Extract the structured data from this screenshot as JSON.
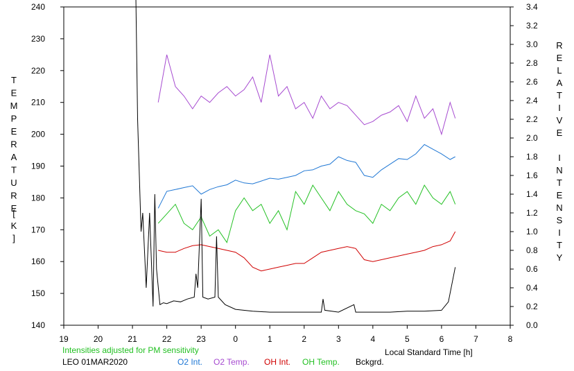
{
  "chart_data": {
    "type": "line",
    "title": "",
    "xlabel": "Local Standard Time [h]",
    "y_left_label": "TEMPERATURE [K]",
    "y_right_label": "RELATIVE INTENSITY",
    "x_range": [
      19,
      32
    ],
    "x_tick_labels": [
      "19",
      "20",
      "21",
      "22",
      "23",
      "0",
      "1",
      "2",
      "3",
      "4",
      "5",
      "6",
      "7",
      "8"
    ],
    "y_left_range": [
      140,
      240
    ],
    "y_left_ticks": [
      140,
      150,
      160,
      170,
      180,
      190,
      200,
      210,
      220,
      230,
      240
    ],
    "y_right_range": [
      0.0,
      3.4
    ],
    "y_right_ticks": [
      "0.0",
      "0.2",
      "0.4",
      "0.6",
      "0.8",
      "1.0",
      "1.2",
      "1.4",
      "1.6",
      "1.8",
      "2.0",
      "2.2",
      "2.4",
      "2.6",
      "2.8",
      "3.0",
      "3.2",
      "3.4"
    ],
    "grid": false,
    "legend_position": "bottom",
    "note": "Intensities adjusted for PM sensitivity",
    "station_date": "LEO 01MAR2020",
    "series": [
      {
        "name": "O2 Int.",
        "color": "#1f77d4",
        "axis": "right",
        "x": [
          21.75,
          22.0,
          22.25,
          22.5,
          22.75,
          23.0,
          23.25,
          23.5,
          23.75,
          24.0,
          24.25,
          24.5,
          24.75,
          25.0,
          25.25,
          25.5,
          25.75,
          26.0,
          26.25,
          26.5,
          26.75,
          27.0,
          27.25,
          27.5,
          27.75,
          28.0,
          28.25,
          28.5,
          28.75,
          29.0,
          29.25,
          29.5,
          29.75,
          30.0,
          30.25,
          30.4
        ],
        "values": [
          1.25,
          1.43,
          1.45,
          1.47,
          1.49,
          1.4,
          1.45,
          1.48,
          1.5,
          1.55,
          1.52,
          1.51,
          1.54,
          1.57,
          1.56,
          1.58,
          1.6,
          1.65,
          1.66,
          1.7,
          1.72,
          1.8,
          1.76,
          1.74,
          1.6,
          1.58,
          1.66,
          1.72,
          1.78,
          1.77,
          1.83,
          1.93,
          1.88,
          1.83,
          1.77,
          1.8
        ]
      },
      {
        "name": "O2 Temp.",
        "color": "#a64ad0",
        "axis": "left",
        "x": [
          21.75,
          22.0,
          22.25,
          22.5,
          22.75,
          23.0,
          23.25,
          23.5,
          23.75,
          24.0,
          24.25,
          24.5,
          24.75,
          25.0,
          25.25,
          25.5,
          25.75,
          26.0,
          26.25,
          26.5,
          26.75,
          27.0,
          27.25,
          27.5,
          27.75,
          28.0,
          28.25,
          28.5,
          28.75,
          29.0,
          29.25,
          29.5,
          29.75,
          30.0,
          30.25,
          30.4
        ],
        "values": [
          210,
          225,
          215,
          212,
          208,
          212,
          210,
          213,
          215,
          212,
          214,
          218,
          210,
          225,
          212,
          215,
          208,
          210,
          205,
          212,
          208,
          210,
          209,
          206,
          203,
          204,
          206,
          207,
          209,
          204,
          212,
          205,
          208,
          200,
          210,
          205
        ]
      },
      {
        "name": "OH Int.",
        "color": "#d00000",
        "axis": "right",
        "x": [
          21.75,
          22.0,
          22.25,
          22.5,
          22.75,
          23.0,
          23.25,
          23.5,
          23.75,
          24.0,
          24.25,
          24.5,
          24.75,
          25.0,
          25.25,
          25.5,
          25.75,
          26.0,
          26.25,
          26.5,
          26.75,
          27.0,
          27.25,
          27.5,
          27.75,
          28.0,
          28.25,
          28.5,
          28.75,
          29.0,
          29.25,
          29.5,
          29.75,
          30.0,
          30.25,
          30.4
        ],
        "values": [
          0.8,
          0.78,
          0.78,
          0.82,
          0.85,
          0.86,
          0.84,
          0.82,
          0.8,
          0.78,
          0.72,
          0.62,
          0.58,
          0.6,
          0.62,
          0.64,
          0.66,
          0.66,
          0.72,
          0.78,
          0.8,
          0.82,
          0.84,
          0.82,
          0.7,
          0.68,
          0.7,
          0.72,
          0.74,
          0.76,
          0.78,
          0.8,
          0.84,
          0.86,
          0.9,
          1.0
        ]
      },
      {
        "name": "OH Temp.",
        "color": "#22c022",
        "axis": "left",
        "x": [
          21.75,
          22.0,
          22.25,
          22.5,
          22.75,
          23.0,
          23.25,
          23.5,
          23.75,
          24.0,
          24.25,
          24.5,
          24.75,
          25.0,
          25.25,
          25.5,
          25.75,
          26.0,
          26.25,
          26.5,
          26.75,
          27.0,
          27.25,
          27.5,
          27.75,
          28.0,
          28.25,
          28.5,
          28.75,
          29.0,
          29.25,
          29.5,
          29.75,
          30.0,
          30.25,
          30.4
        ],
        "values": [
          172,
          175,
          178,
          172,
          170,
          174,
          168,
          170,
          166,
          176,
          180,
          176,
          178,
          172,
          176,
          170,
          182,
          178,
          184,
          180,
          176,
          182,
          178,
          176,
          175,
          172,
          178,
          176,
          180,
          182,
          178,
          184,
          180,
          178,
          182,
          178
        ]
      },
      {
        "name": "Bckgrd.",
        "color": "#000000",
        "axis": "right",
        "x": [
          21.1,
          21.15,
          21.25,
          21.3,
          21.4,
          21.5,
          21.6,
          21.65,
          21.7,
          21.8,
          21.9,
          22.0,
          22.2,
          22.4,
          22.6,
          22.8,
          22.85,
          22.9,
          23.0,
          23.05,
          23.2,
          23.4,
          23.45,
          23.5,
          23.7,
          24.0,
          24.5,
          25.0,
          25.5,
          26.0,
          26.5,
          26.55,
          26.6,
          27.0,
          27.45,
          27.5,
          28.0,
          28.5,
          29.0,
          29.5,
          30.0,
          30.2,
          30.4
        ],
        "values": [
          3.5,
          2.2,
          1.0,
          1.2,
          0.4,
          1.2,
          0.2,
          1.4,
          0.6,
          0.22,
          0.24,
          0.23,
          0.26,
          0.25,
          0.28,
          0.3,
          0.55,
          0.4,
          1.35,
          0.3,
          0.28,
          0.3,
          0.95,
          0.3,
          0.22,
          0.17,
          0.15,
          0.14,
          0.14,
          0.14,
          0.14,
          0.28,
          0.16,
          0.14,
          0.22,
          0.14,
          0.14,
          0.14,
          0.15,
          0.15,
          0.16,
          0.25,
          0.62
        ]
      }
    ]
  }
}
